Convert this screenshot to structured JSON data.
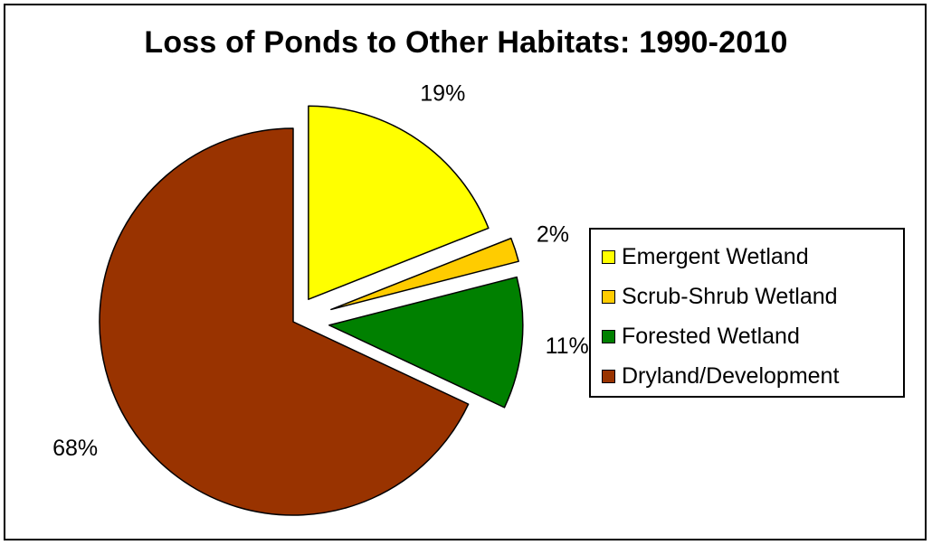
{
  "chart_data": {
    "type": "pie",
    "title": "Loss of Ponds to Other Habitats: 1990-2010",
    "categories": [
      "Emergent Wetland",
      "Scrub-Shrub Wetland",
      "Forested Wetland",
      "Dryland/Development"
    ],
    "values": [
      19,
      2,
      11,
      68
    ],
    "value_labels": [
      "19%",
      "2%",
      "11%",
      "68%"
    ],
    "colors": [
      "#ffff00",
      "#ffcc00",
      "#008000",
      "#993300"
    ],
    "exploded": true,
    "start_angle_deg": 0,
    "direction": "clockwise",
    "legend_position": "right"
  }
}
